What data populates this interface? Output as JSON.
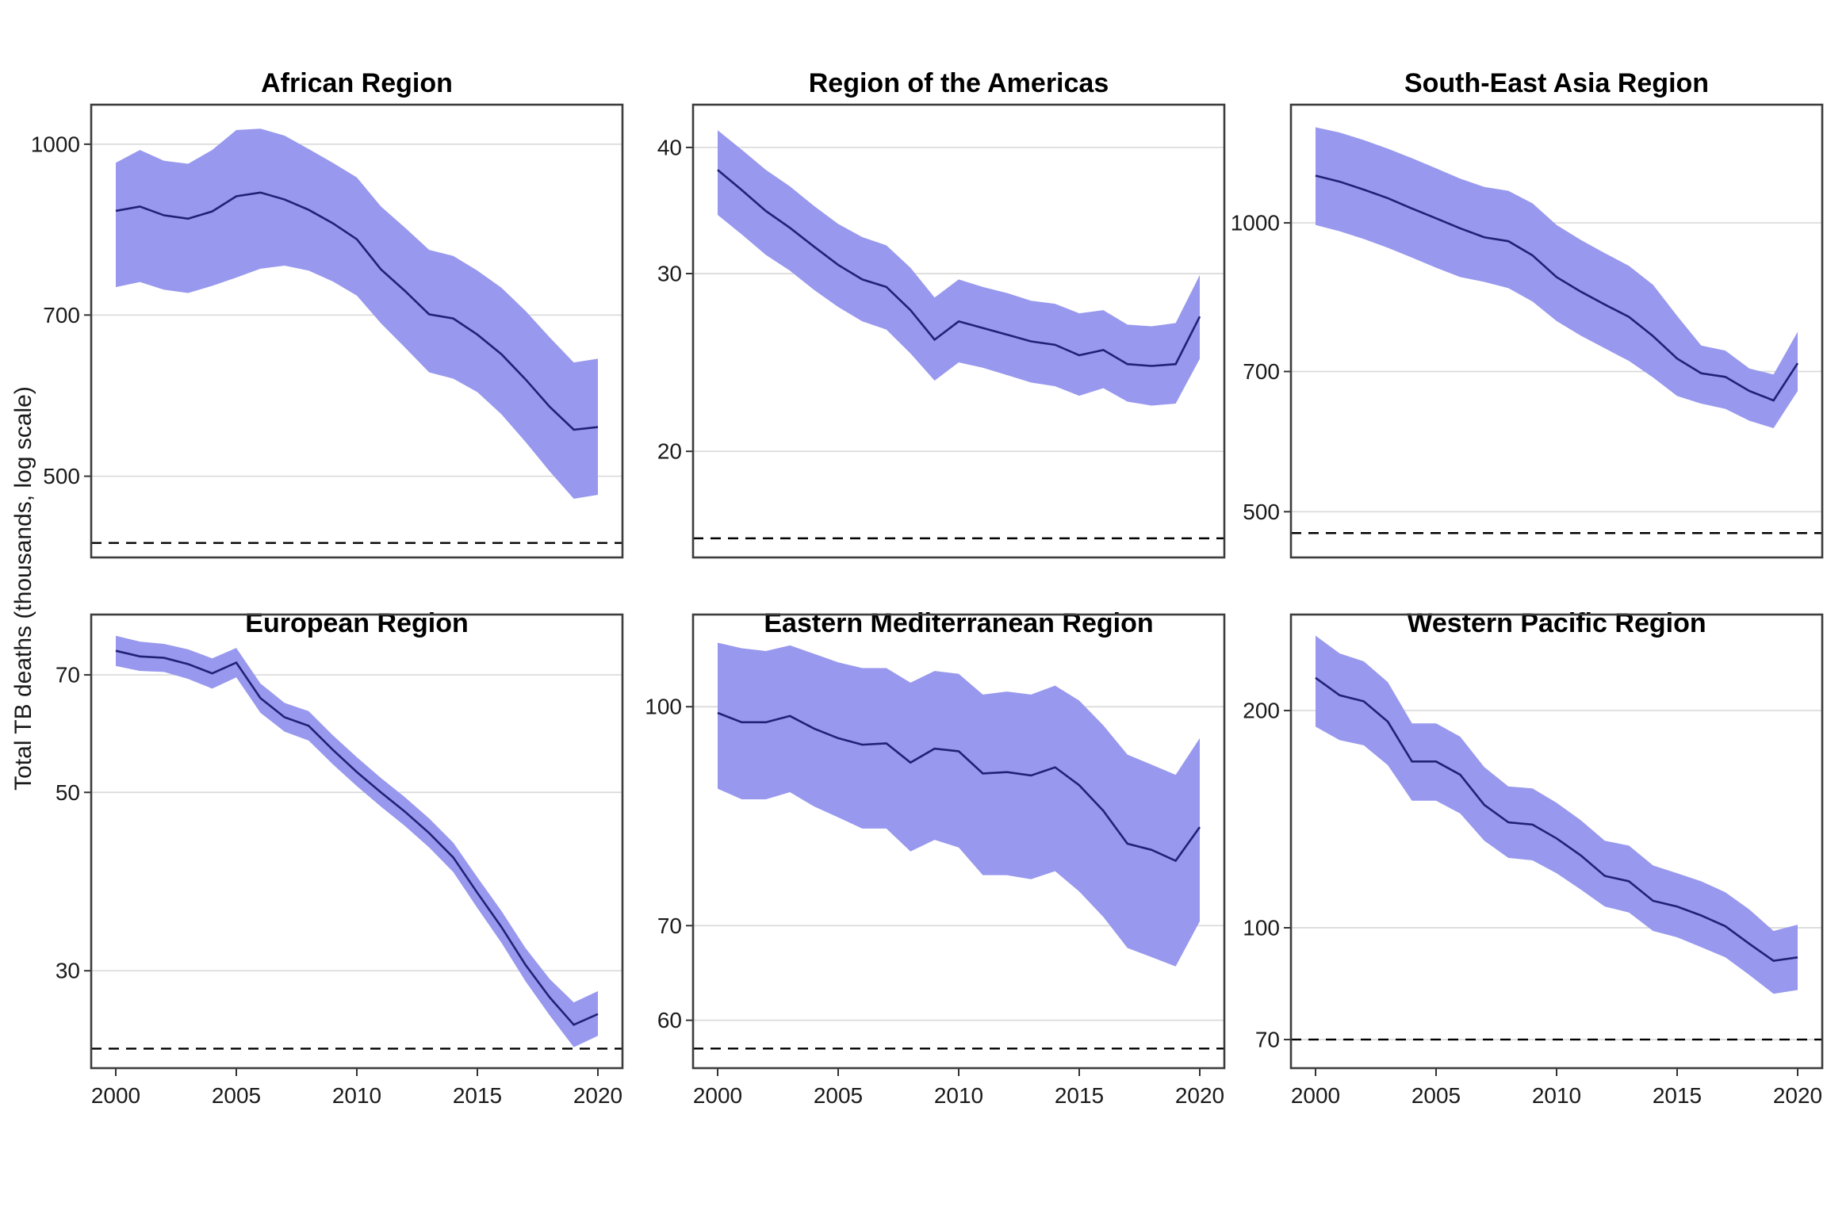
{
  "figure": {
    "y_axis_label": "Total TB deaths (thousands, log scale)"
  },
  "style": {
    "ribbon_color": "#9898EE",
    "line_color": "#212175",
    "dashed_line_color": "#000000",
    "gridline_color": "#DADADA",
    "border_color": "#3D3D3D",
    "tick_color": "#333333",
    "text_color": "#1A1A1A"
  },
  "years": [
    2000,
    2001,
    2002,
    2003,
    2004,
    2005,
    2006,
    2007,
    2008,
    2009,
    2010,
    2011,
    2012,
    2013,
    2014,
    2015,
    2016,
    2017,
    2018,
    2019,
    2020
  ],
  "x_ticks": [
    2000,
    2005,
    2010,
    2015,
    2020
  ],
  "chart_data": [
    {
      "type": "area",
      "title": "African Region",
      "ylog": true,
      "ylim": [
        422,
        1086
      ],
      "yticks": [
        500,
        700,
        1000
      ],
      "dashed_reference": 435,
      "legend": "none",
      "series": [
        {
          "name": "estimate",
          "values": [
            870,
            878,
            862,
            856,
            869,
            897,
            904,
            891,
            872,
            848,
            820,
            770,
            736,
            701,
            695,
            672,
            645,
            612,
            578,
            551,
            554
          ]
        },
        {
          "name": "lower",
          "values": [
            742,
            750,
            738,
            733,
            744,
            757,
            771,
            776,
            768,
            751,
            729,
            688,
            654,
            621,
            613,
            596,
            569,
            537,
            505,
            477,
            481
          ]
        },
        {
          "name": "upper",
          "values": [
            962,
            988,
            966,
            960,
            988,
            1030,
            1033,
            1018,
            990,
            962,
            933,
            878,
            840,
            802,
            792,
            768,
            741,
            706,
            668,
            634,
            639
          ]
        }
      ]
    },
    {
      "type": "area",
      "title": "Region of the Americas",
      "ylog": true,
      "ylim": [
        15.7,
        44.1
      ],
      "yticks": [
        20,
        30,
        40
      ],
      "dashed_reference": 16.4,
      "legend": "none",
      "series": [
        {
          "name": "estimate",
          "values": [
            38.0,
            36.3,
            34.6,
            33.3,
            31.9,
            30.6,
            29.6,
            29.1,
            27.6,
            25.8,
            26.9,
            26.5,
            26.1,
            25.7,
            25.5,
            24.9,
            25.2,
            24.4,
            24.3,
            24.4,
            27.2
          ]
        },
        {
          "name": "lower",
          "values": [
            34.3,
            32.8,
            31.3,
            30.2,
            28.9,
            27.8,
            26.9,
            26.4,
            25.0,
            23.5,
            24.5,
            24.2,
            23.8,
            23.4,
            23.2,
            22.7,
            23.1,
            22.4,
            22.2,
            22.3,
            24.7
          ]
        },
        {
          "name": "upper",
          "values": [
            41.6,
            39.8,
            38.0,
            36.6,
            35.0,
            33.6,
            32.6,
            32.0,
            30.4,
            28.4,
            29.6,
            29.1,
            28.7,
            28.2,
            28.0,
            27.4,
            27.6,
            26.7,
            26.6,
            26.8,
            29.9
          ]
        }
      ]
    },
    {
      "type": "area",
      "title": "South-East Asia Region",
      "ylog": true,
      "ylim": [
        448,
        1328
      ],
      "yticks": [
        500,
        700,
        1000
      ],
      "dashed_reference": 475,
      "legend": "none",
      "series": [
        {
          "name": "estimate",
          "values": [
            1120,
            1104,
            1083,
            1061,
            1035,
            1011,
            987,
            966,
            957,
            925,
            878,
            848,
            822,
            798,
            762,
            722,
            697,
            691,
            668,
            653,
            714
          ]
        },
        {
          "name": "lower",
          "values": [
            995,
            980,
            962,
            942,
            920,
            898,
            878,
            868,
            855,
            828,
            790,
            763,
            740,
            718,
            690,
            660,
            648,
            640,
            622,
            611,
            668
          ]
        },
        {
          "name": "upper",
          "values": [
            1258,
            1242,
            1220,
            1195,
            1168,
            1140,
            1112,
            1090,
            1080,
            1048,
            995,
            960,
            930,
            902,
            862,
            800,
            745,
            736,
            705,
            695,
            770
          ]
        }
      ]
    },
    {
      "type": "area",
      "title": "European Region",
      "ylog": true,
      "ylim": [
        22.7,
        83.2
      ],
      "yticks": [
        30,
        50,
        70
      ],
      "dashed_reference": 24.0,
      "legend": "none",
      "series": [
        {
          "name": "estimate",
          "values": [
            75.0,
            73.8,
            73.5,
            72.2,
            70.3,
            72.5,
            65.5,
            62.0,
            60.5,
            56.5,
            53.0,
            50.0,
            47.3,
            44.5,
            41.5,
            37.5,
            34.0,
            30.5,
            27.8,
            25.7,
            26.5
          ]
        },
        {
          "name": "lower",
          "values": [
            71.8,
            70.8,
            70.6,
            69.2,
            67.3,
            69.5,
            62.8,
            59.5,
            58.0,
            54.2,
            50.9,
            48.0,
            45.4,
            42.7,
            39.8,
            35.9,
            32.5,
            29.1,
            26.4,
            24.1,
            24.9
          ]
        },
        {
          "name": "upper",
          "values": [
            78.3,
            77.0,
            76.5,
            75.3,
            73.4,
            75.6,
            68.3,
            64.6,
            63.1,
            58.9,
            55.3,
            52.1,
            49.3,
            46.4,
            43.3,
            39.2,
            35.6,
            32.0,
            29.3,
            27.4,
            28.3
          ]
        }
      ]
    },
    {
      "type": "area",
      "title": "Eastern Mediterranean Region",
      "ylog": true,
      "ylim": [
        55.5,
        116.2
      ],
      "yticks": [
        60,
        70,
        100
      ],
      "dashed_reference": 57.3,
      "legend": "none",
      "series": [
        {
          "name": "estimate",
          "values": [
            99,
            97.5,
            97.5,
            98.5,
            96.5,
            95,
            94,
            94.2,
            91.3,
            93.4,
            93,
            89.7,
            89.9,
            89.4,
            90.6,
            88,
            84.4,
            80,
            79.2,
            77.8,
            82.2
          ]
        },
        {
          "name": "lower",
          "values": [
            87.5,
            86,
            86,
            87,
            85,
            83.5,
            82,
            82,
            79,
            80.5,
            79.5,
            76,
            76,
            75.5,
            76.5,
            74,
            71,
            67.5,
            66.5,
            65.5,
            70.5
          ]
        },
        {
          "name": "upper",
          "values": [
            111,
            110,
            109.5,
            110.5,
            109,
            107.5,
            106.5,
            106.5,
            104,
            106,
            105.5,
            102,
            102.5,
            102,
            103.5,
            101,
            97,
            92.5,
            91,
            89.5,
            95
          ]
        }
      ]
    },
    {
      "type": "area",
      "title": "Western Pacific Region",
      "ylog": true,
      "ylim": [
        63.9,
        271.7
      ],
      "yticks": [
        70,
        100,
        200
      ],
      "dashed_reference": 70,
      "legend": "none",
      "series": [
        {
          "name": "estimate",
          "values": [
            222,
            210,
            206,
            193,
            170,
            170,
            163,
            148,
            140,
            139,
            133,
            126,
            118,
            116,
            109,
            107,
            104,
            100.5,
            95,
            90,
            91
          ]
        },
        {
          "name": "lower",
          "values": [
            190,
            182,
            179,
            168,
            150,
            150,
            144,
            132,
            125,
            124,
            119,
            113,
            107,
            105,
            99,
            97,
            94,
            91,
            86,
            81,
            82
          ]
        },
        {
          "name": "upper",
          "values": [
            254,
            240,
            234,
            219,
            192,
            192,
            184,
            167,
            157,
            156,
            149,
            141,
            132,
            130,
            122,
            119,
            116,
            112,
            106,
            99,
            101
          ]
        }
      ]
    }
  ]
}
